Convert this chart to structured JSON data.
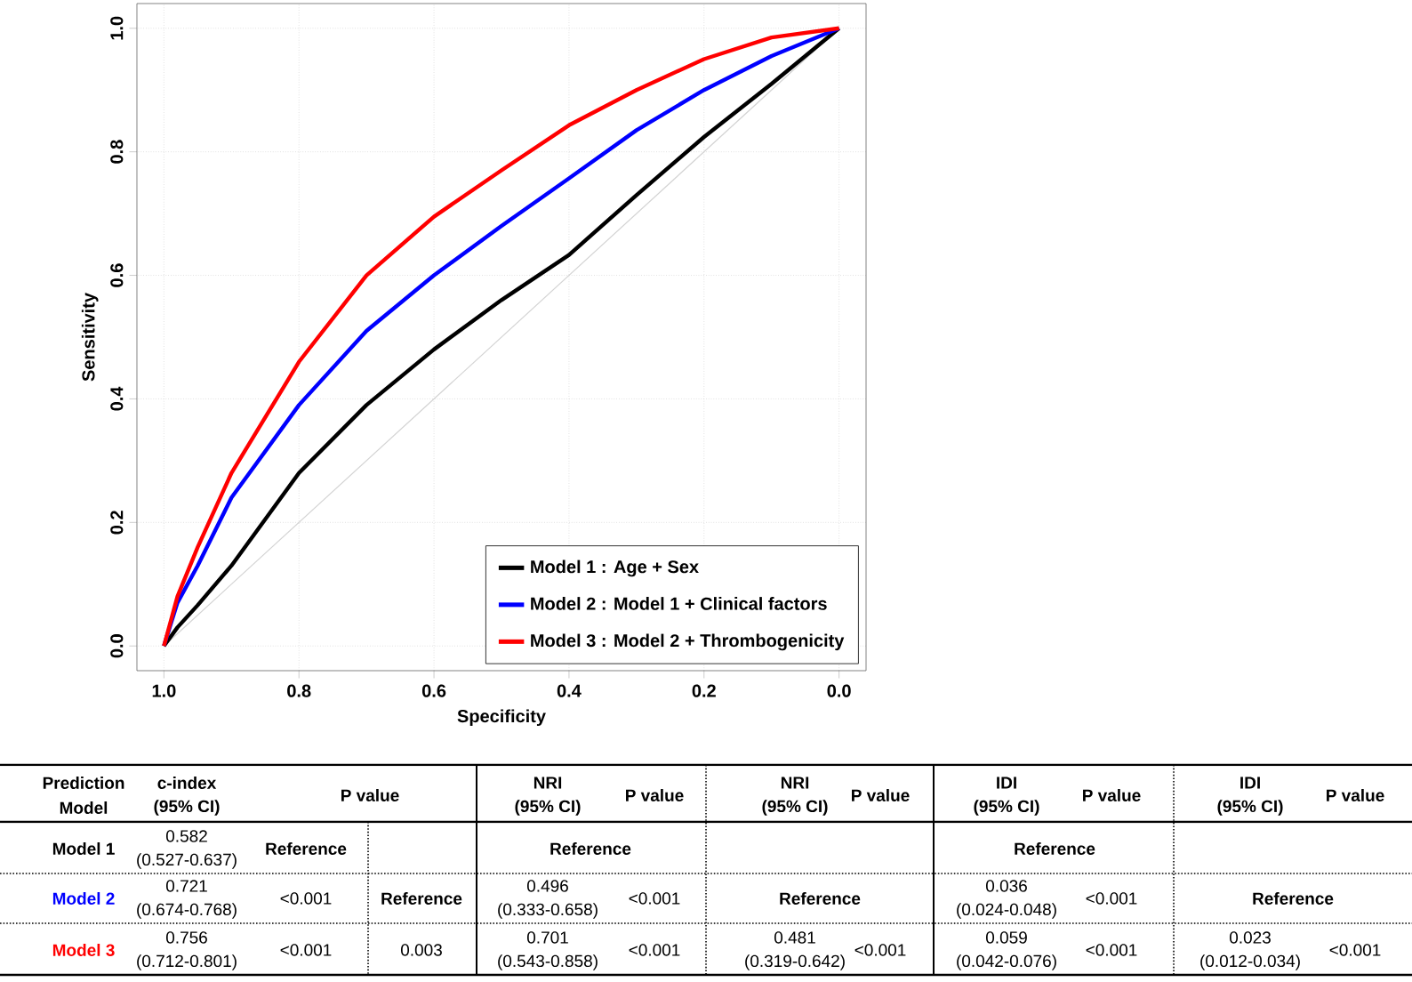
{
  "chart_data": {
    "type": "line",
    "xlabel": "Specificity",
    "ylabel": "Sensitivity",
    "xlim": [
      1.04,
      -0.04
    ],
    "ylim": [
      -0.04,
      1.04
    ],
    "xticks": [
      {
        "value": 1,
        "label": "1.0"
      },
      0.8,
      0.6,
      0.4,
      0.2,
      {
        "value": 0,
        "label": "0.0"
      }
    ],
    "yticks": [
      {
        "value": 0,
        "label": "0.0"
      },
      0.2,
      0.4,
      0.6,
      0.8,
      {
        "value": 1,
        "label": "1.0"
      }
    ],
    "grid": true,
    "legend": "bottom right",
    "line_style": "solid",
    "marker": "none",
    "series": [
      {
        "color": "#d3d3d3",
        "x": [
          1.0,
          0.0
        ],
        "values": [
          0.0,
          1.0
        ]
      },
      {
        "name": "Model 1 : Age + Sex",
        "color": "#000000",
        "x": [
          1.0,
          0.98,
          0.95,
          0.9,
          0.8,
          0.7,
          0.6,
          0.5,
          0.4,
          0.3,
          0.2,
          0.1,
          0.0
        ],
        "values": [
          0.0,
          0.03,
          0.066,
          0.13,
          0.28,
          0.39,
          0.48,
          0.56,
          0.633,
          0.73,
          0.824,
          0.91,
          1.0
        ]
      },
      {
        "name": "Model 2 : Model 1 + Clinical factors",
        "color": "#0000ff",
        "x": [
          1.0,
          0.98,
          0.95,
          0.9,
          0.8,
          0.7,
          0.6,
          0.5,
          0.4,
          0.3,
          0.2,
          0.1,
          0.0
        ],
        "values": [
          0.0,
          0.07,
          0.13,
          0.24,
          0.39,
          0.51,
          0.6,
          0.68,
          0.757,
          0.835,
          0.9,
          0.955,
          1.0
        ]
      },
      {
        "name": "Model 3 : Model 2 + Thrombogenicity",
        "color": "#ff0000",
        "x": [
          1.0,
          0.98,
          0.95,
          0.9,
          0.8,
          0.7,
          0.6,
          0.5,
          0.4,
          0.3,
          0.2,
          0.1,
          0.0
        ],
        "values": [
          0.0,
          0.08,
          0.16,
          0.28,
          0.46,
          0.6,
          0.695,
          0.77,
          0.843,
          0.9,
          0.95,
          0.985,
          1.0
        ]
      }
    ],
    "annotations": [
      "Prediction",
      "Model",
      "c-index",
      "(95% CI)",
      "P value",
      "NRI",
      "(95% CI)",
      "P value",
      "NRI",
      "(95% CI)",
      "P value",
      "IDI",
      "(95% CI)",
      "P value",
      "IDI",
      "(95% CI)",
      "P value",
      "Model 1",
      "0.582",
      "(0.527-0.637)",
      "Reference",
      "Reference",
      "Reference",
      "Model 2",
      "0.721",
      "(0.674-0.768)",
      "<0.001",
      "Reference",
      "0.496",
      "(0.333-0.658)",
      "<0.001",
      "Reference",
      "0.036",
      "(0.024-0.048)",
      "<0.001",
      "Reference",
      "Model 3",
      "0.756",
      "(0.712-0.801)",
      "<0.001",
      "0.003",
      "0.701",
      "(0.543-0.858)",
      "<0.001",
      "0.481",
      "(0.319-0.642)",
      "<0.001",
      "0.059",
      "(0.042-0.076)",
      "<0.001",
      "0.023",
      "(0.012-0.034)",
      "<0.001"
    ]
  }
}
